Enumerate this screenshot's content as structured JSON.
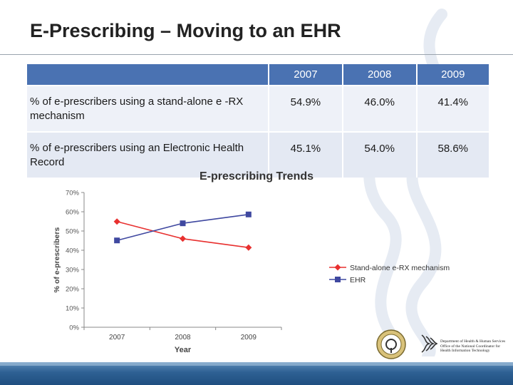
{
  "slide": {
    "title": "E-Prescribing – Moving to an EHR"
  },
  "table": {
    "years": [
      "2007",
      "2008",
      "2009"
    ],
    "rows": [
      {
        "label": "% of e-prescribers using a stand-alone e -RX mechanism",
        "values": [
          "54.9%",
          "46.0%",
          "41.4%"
        ]
      },
      {
        "label": "% of e-prescribers using an Electronic Health Record",
        "values": [
          "45.1%",
          "54.0%",
          "58.6%"
        ]
      }
    ]
  },
  "chart_data": {
    "type": "line",
    "title": "E-prescribing Trends",
    "xlabel": "Year",
    "ylabel": "% of e-prescribers",
    "categories": [
      "2007",
      "2008",
      "2009"
    ],
    "ylim": [
      0,
      70
    ],
    "yticks": [
      "0%",
      "10%",
      "20%",
      "30%",
      "40%",
      "50%",
      "60%",
      "70%"
    ],
    "legend_position": "right",
    "series": [
      {
        "name": "Stand-alone e-RX mechanism",
        "color": "#e8302f",
        "marker": "diamond",
        "values": [
          54.9,
          46.0,
          41.4
        ]
      },
      {
        "name": "EHR",
        "color": "#3f48a0",
        "marker": "square",
        "values": [
          45.1,
          54.0,
          58.6
        ]
      }
    ]
  },
  "logos": {
    "hhs_text": "Department of Health & Human Services Office of the National Coordinator for Health Information Technology"
  },
  "colors": {
    "table_header": "#4a72b2",
    "footer": "#2e6093"
  }
}
